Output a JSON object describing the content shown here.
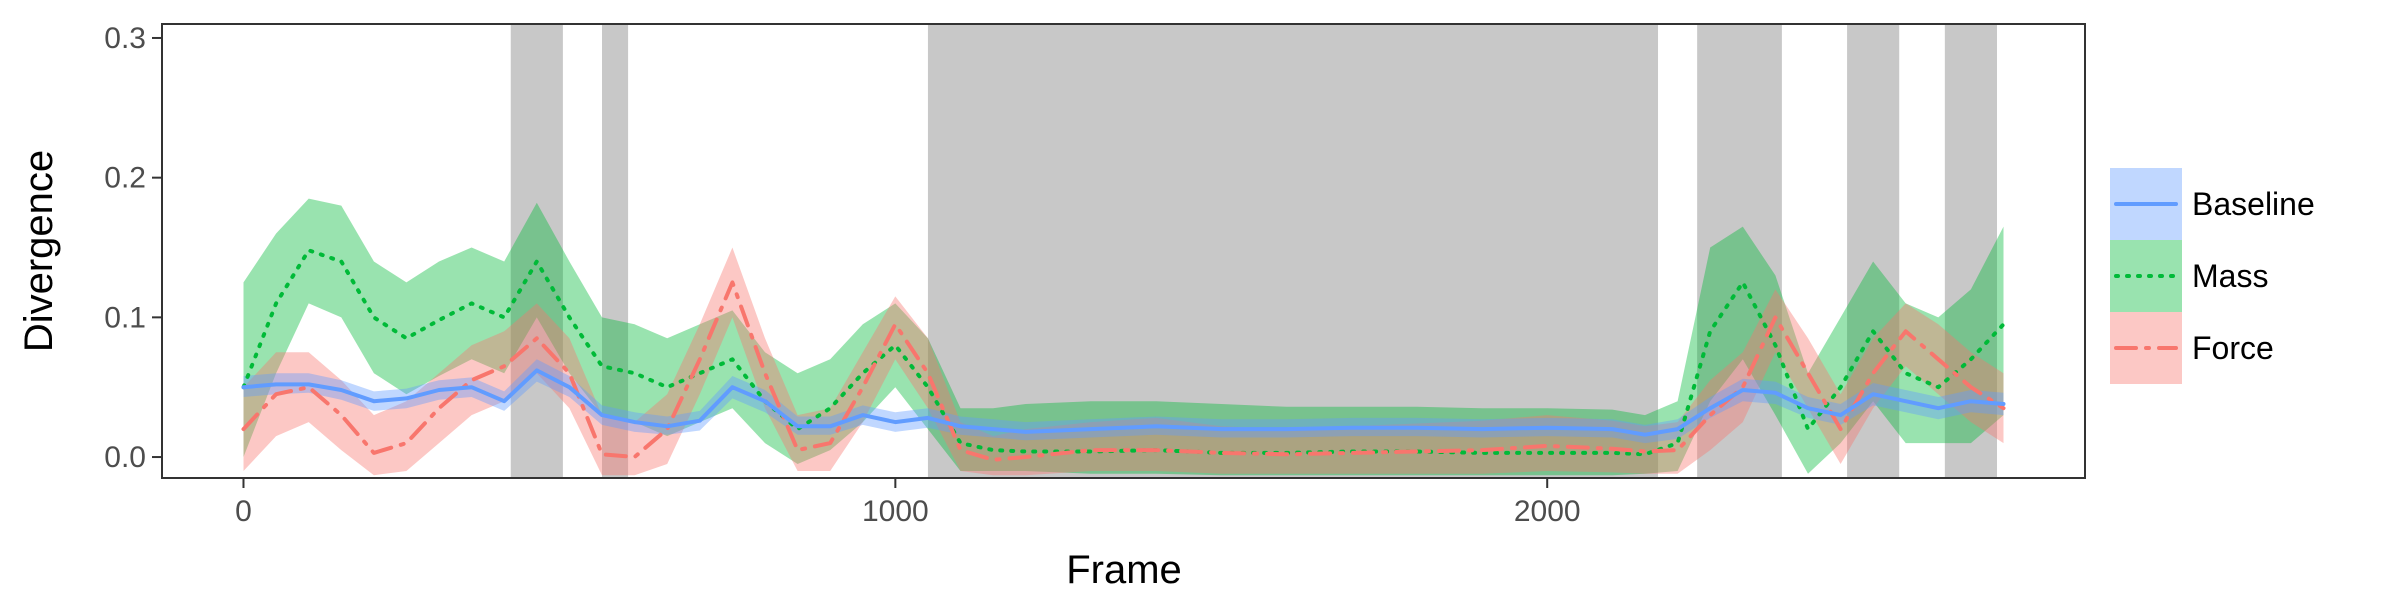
{
  "chart_data": {
    "type": "line",
    "xlabel": "Frame",
    "ylabel": "Divergence",
    "xlim": [
      -125,
      2825
    ],
    "ylim": [
      -0.015,
      0.31
    ],
    "x_ticks": [
      0,
      1000,
      2000
    ],
    "x_tick_labels": [
      "0",
      "1000",
      "2000"
    ],
    "y_ticks": [
      0.0,
      0.1,
      0.2,
      0.3
    ],
    "y_tick_labels": [
      "0.0",
      "0.1",
      "0.2",
      "0.3"
    ],
    "grid": false,
    "legend_position": "right",
    "shaded_regions": [
      [
        410,
        490
      ],
      [
        550,
        590
      ],
      [
        1050,
        2170
      ],
      [
        2230,
        2360
      ],
      [
        2460,
        2540
      ],
      [
        2610,
        2690
      ]
    ],
    "x": [
      0,
      50,
      100,
      150,
      200,
      250,
      300,
      350,
      400,
      450,
      500,
      550,
      600,
      650,
      700,
      750,
      800,
      850,
      900,
      950,
      1000,
      1050,
      1100,
      1150,
      1200,
      1300,
      1400,
      1500,
      1600,
      1700,
      1800,
      1900,
      2000,
      2100,
      2150,
      2200,
      2250,
      2300,
      2350,
      2400,
      2450,
      2500,
      2550,
      2600,
      2650,
      2700
    ],
    "series": [
      {
        "name": "Baseline",
        "color": "#619CFF",
        "line": "solid",
        "values": [
          0.05,
          0.052,
          0.052,
          0.048,
          0.04,
          0.042,
          0.048,
          0.05,
          0.04,
          0.062,
          0.05,
          0.03,
          0.025,
          0.022,
          0.026,
          0.05,
          0.04,
          0.022,
          0.022,
          0.03,
          0.025,
          0.028,
          0.022,
          0.02,
          0.018,
          0.02,
          0.022,
          0.02,
          0.02,
          0.021,
          0.021,
          0.02,
          0.021,
          0.02,
          0.016,
          0.02,
          0.035,
          0.048,
          0.046,
          0.035,
          0.03,
          0.045,
          0.04,
          0.035,
          0.04,
          0.038
        ],
        "lower": [
          0.043,
          0.045,
          0.046,
          0.041,
          0.033,
          0.035,
          0.041,
          0.043,
          0.033,
          0.054,
          0.043,
          0.023,
          0.018,
          0.016,
          0.019,
          0.042,
          0.032,
          0.016,
          0.016,
          0.023,
          0.018,
          0.021,
          0.016,
          0.014,
          0.012,
          0.014,
          0.016,
          0.014,
          0.014,
          0.015,
          0.015,
          0.014,
          0.015,
          0.014,
          0.01,
          0.013,
          0.028,
          0.04,
          0.038,
          0.028,
          0.023,
          0.037,
          0.032,
          0.027,
          0.032,
          0.03
        ],
        "upper": [
          0.058,
          0.06,
          0.06,
          0.055,
          0.047,
          0.049,
          0.055,
          0.057,
          0.047,
          0.07,
          0.058,
          0.037,
          0.032,
          0.029,
          0.033,
          0.058,
          0.048,
          0.029,
          0.029,
          0.037,
          0.032,
          0.035,
          0.029,
          0.027,
          0.025,
          0.027,
          0.029,
          0.027,
          0.027,
          0.028,
          0.028,
          0.027,
          0.028,
          0.027,
          0.023,
          0.027,
          0.043,
          0.056,
          0.054,
          0.043,
          0.038,
          0.053,
          0.048,
          0.043,
          0.048,
          0.046
        ]
      },
      {
        "name": "Mass",
        "color": "#00BA38",
        "line": "dotted",
        "values": [
          0.05,
          0.11,
          0.148,
          0.14,
          0.1,
          0.085,
          0.098,
          0.11,
          0.1,
          0.14,
          0.1,
          0.065,
          0.06,
          0.05,
          0.06,
          0.07,
          0.04,
          0.02,
          0.035,
          0.06,
          0.08,
          0.05,
          0.01,
          0.005,
          0.004,
          0.004,
          0.005,
          0.003,
          0.003,
          0.004,
          0.004,
          0.003,
          0.003,
          0.003,
          0.002,
          0.01,
          0.09,
          0.125,
          0.08,
          0.02,
          0.05,
          0.09,
          0.06,
          0.05,
          0.07,
          0.095
        ],
        "lower": [
          0.0,
          0.06,
          0.11,
          0.1,
          0.06,
          0.045,
          0.058,
          0.07,
          0.06,
          0.1,
          0.06,
          0.03,
          0.025,
          0.015,
          0.025,
          0.035,
          0.01,
          -0.005,
          0.005,
          0.025,
          0.05,
          0.02,
          -0.01,
          -0.01,
          -0.01,
          -0.012,
          -0.012,
          -0.013,
          -0.013,
          -0.013,
          -0.013,
          -0.013,
          -0.013,
          -0.013,
          -0.012,
          -0.01,
          0.04,
          0.07,
          0.03,
          -0.012,
          0.01,
          0.04,
          0.01,
          0.01,
          0.01,
          0.03
        ],
        "upper": [
          0.125,
          0.16,
          0.185,
          0.18,
          0.14,
          0.125,
          0.14,
          0.15,
          0.14,
          0.182,
          0.14,
          0.1,
          0.095,
          0.085,
          0.095,
          0.105,
          0.075,
          0.06,
          0.07,
          0.095,
          0.11,
          0.085,
          0.035,
          0.035,
          0.038,
          0.04,
          0.04,
          0.038,
          0.036,
          0.036,
          0.036,
          0.035,
          0.035,
          0.034,
          0.03,
          0.04,
          0.15,
          0.165,
          0.13,
          0.06,
          0.1,
          0.14,
          0.11,
          0.1,
          0.12,
          0.165
        ]
      },
      {
        "name": "Force",
        "color": "#F8766D",
        "line": "dashdot",
        "values": [
          0.02,
          0.045,
          0.05,
          0.03,
          0.003,
          0.01,
          0.035,
          0.055,
          0.065,
          0.085,
          0.06,
          0.002,
          0.0,
          0.02,
          0.07,
          0.125,
          0.06,
          0.005,
          0.01,
          0.05,
          0.095,
          0.06,
          0.005,
          -0.002,
          0.0,
          0.005,
          0.005,
          0.003,
          0.002,
          0.003,
          0.004,
          0.005,
          0.008,
          0.006,
          0.004,
          0.005,
          0.03,
          0.05,
          0.1,
          0.06,
          0.02,
          0.06,
          0.09,
          0.07,
          0.05,
          0.035
        ],
        "lower": [
          -0.01,
          0.015,
          0.025,
          0.005,
          -0.013,
          -0.01,
          0.01,
          0.03,
          0.04,
          0.06,
          0.035,
          -0.013,
          -0.013,
          -0.005,
          0.045,
          0.1,
          0.035,
          -0.01,
          -0.01,
          0.025,
          0.07,
          0.035,
          -0.01,
          -0.013,
          -0.013,
          -0.01,
          -0.01,
          -0.012,
          -0.012,
          -0.012,
          -0.012,
          -0.012,
          -0.01,
          -0.011,
          -0.012,
          -0.012,
          0.005,
          0.025,
          0.075,
          0.035,
          -0.005,
          0.035,
          0.065,
          0.045,
          0.025,
          0.01
        ],
        "upper": [
          0.05,
          0.075,
          0.075,
          0.055,
          0.03,
          0.04,
          0.06,
          0.08,
          0.09,
          0.11,
          0.085,
          0.03,
          0.025,
          0.045,
          0.095,
          0.15,
          0.085,
          0.03,
          0.035,
          0.075,
          0.115,
          0.085,
          0.025,
          0.015,
          0.02,
          0.025,
          0.028,
          0.022,
          0.02,
          0.022,
          0.024,
          0.026,
          0.03,
          0.026,
          0.022,
          0.025,
          0.055,
          0.075,
          0.12,
          0.085,
          0.045,
          0.085,
          0.11,
          0.095,
          0.075,
          0.06
        ]
      }
    ]
  }
}
